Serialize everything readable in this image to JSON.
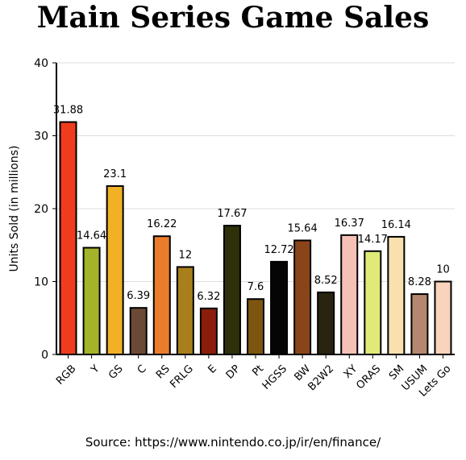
{
  "chart_data": {
    "type": "bar",
    "title": "Main Series Game Sales",
    "ylabel": "Units Sold (in millions)",
    "xlabel": "",
    "ylim": [
      0,
      40
    ],
    "yticks": [
      0,
      10,
      20,
      30,
      40
    ],
    "grid": true,
    "categories": [
      "RGB",
      "Y",
      "GS",
      "C",
      "RS",
      "FRLG",
      "E",
      "DP",
      "Pt",
      "HGSS",
      "BW",
      "B2W2",
      "XY",
      "ORAS",
      "SM",
      "USUM",
      "Lets Go"
    ],
    "values": [
      31.88,
      14.64,
      23.1,
      6.39,
      16.22,
      12,
      6.32,
      17.67,
      7.6,
      12.72,
      15.64,
      8.52,
      16.37,
      14.17,
      16.14,
      8.28,
      10
    ],
    "colors": [
      "#f03c1e",
      "#a4b42a",
      "#f2b026",
      "#6b4a35",
      "#ea7d2c",
      "#a87f1b",
      "#8a1e0a",
      "#2d3008",
      "#7c5510",
      "#050505",
      "#8a4419",
      "#282410",
      "#f7c0b6",
      "#e0ea77",
      "#f9e0ac",
      "#b58770",
      "#f9d3bb"
    ]
  },
  "source": "Source: https://www.nintendo.co.jp/ir/en/finance/"
}
